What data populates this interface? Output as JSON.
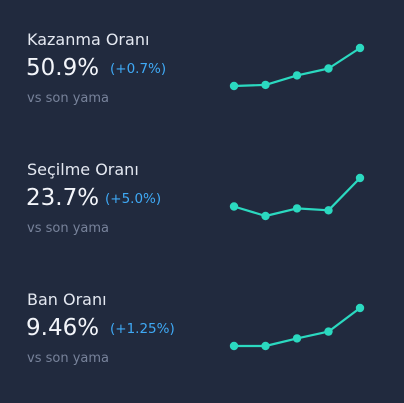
{
  "accent_color": "#2bd9c0",
  "change_color": "#3fa9f5",
  "stats": [
    {
      "label": "Kazanma Oranı",
      "value": "50.9%",
      "change": "(+0.7%)",
      "subtitle": "vs son yama",
      "trend": [
        0.0,
        0.03,
        0.28,
        0.46,
        1.0
      ]
    },
    {
      "label": "Seçilme Oranı",
      "value": "23.7%",
      "change": "(+5.0%)",
      "subtitle": "vs son yama",
      "trend": [
        0.25,
        0.0,
        0.2,
        0.15,
        1.0
      ]
    },
    {
      "label": "Ban Oranı",
      "value": "9.46%",
      "change": "(+1.25%)",
      "subtitle": "vs son yama",
      "trend": [
        0.0,
        0.0,
        0.2,
        0.38,
        1.0
      ]
    }
  ]
}
